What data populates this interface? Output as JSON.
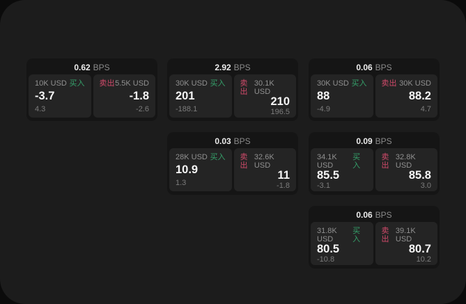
{
  "labels": {
    "bps": "BPS",
    "buy": "买入",
    "sell": "卖出"
  },
  "colors": {
    "background_outer": "#0b0b0b",
    "background_screen": "#1c1c1c",
    "card_background": "#151515",
    "panel_background": "#242424",
    "buy_accent": "#35a06a",
    "sell_accent": "#d04a6a",
    "value_text": "#f5f5f5",
    "muted_text": "#8a8a8a"
  },
  "cards": [
    {
      "bps": "0.62",
      "buy": {
        "amount": "10K USD",
        "value": "-3.7",
        "sub": "4.3"
      },
      "sell": {
        "amount": "5.5K USD",
        "value": "-1.8",
        "sub": "-2.6"
      }
    },
    {
      "bps": "2.92",
      "buy": {
        "amount": "30K USD",
        "value": "201",
        "sub": "-188.1"
      },
      "sell": {
        "amount": "30.1K USD",
        "value": "210",
        "sub": "196.5"
      }
    },
    {
      "bps": "0.06",
      "buy": {
        "amount": "30K USD",
        "value": "88",
        "sub": "-4.9"
      },
      "sell": {
        "amount": "30K USD",
        "value": "88.2",
        "sub": "4.7"
      }
    },
    {
      "bps": "0.03",
      "buy": {
        "amount": "28K USD",
        "value": "10.9",
        "sub": "1.3"
      },
      "sell": {
        "amount": "32.6K USD",
        "value": "11",
        "sub": "-1.8"
      }
    },
    {
      "bps": "0.09",
      "buy": {
        "amount": "34.1K USD",
        "value": "85.5",
        "sub": "-3.1"
      },
      "sell": {
        "amount": "32.8K USD",
        "value": "85.8",
        "sub": "3.0"
      }
    },
    {
      "bps": "0.06",
      "buy": {
        "amount": "31.8K USD",
        "value": "80.5",
        "sub": "-10.8"
      },
      "sell": {
        "amount": "39.1K USD",
        "value": "80.7",
        "sub": "10.2"
      }
    }
  ]
}
